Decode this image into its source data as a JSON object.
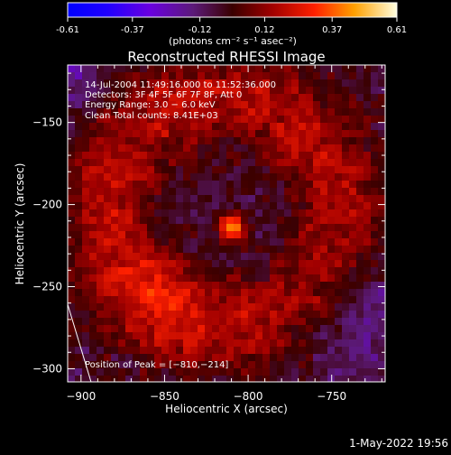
{
  "colorbar": {
    "ticks": [
      "-0.61",
      "-0.37",
      "-0.12",
      "0.12",
      "0.37",
      "0.61"
    ],
    "tick_values": [
      -0.61,
      -0.37,
      -0.12,
      0.12,
      0.37,
      0.61
    ],
    "range": [
      -0.61,
      0.61
    ],
    "units_label": "(photons cm⁻² s⁻¹ asec⁻²)"
  },
  "chart_data": {
    "type": "heatmap",
    "title": "Reconstructed RHESSI Image",
    "xlabel": "Heliocentric X (arcsec)",
    "ylabel": "Heliocentric Y (arcsec)",
    "xlim": [
      -908,
      -718
    ],
    "ylim": [
      -308,
      -115
    ],
    "xticks": [
      -900,
      -850,
      -800,
      -750
    ],
    "yticks": [
      -150,
      -200,
      -250,
      -300
    ],
    "xtick_labels": [
      "−900",
      "−850",
      "−800",
      "−750"
    ],
    "ytick_labels": [
      "−150",
      "−200",
      "−250",
      "−300"
    ],
    "info_lines": [
      "14-Jul-2004 11:49:16.000 to 11:52:36.000",
      "Detectors: 3F 4F 5F 6F 7F 8F, Att 0",
      "Energy Range: 3.0 − 6.0 keV",
      "Clean     Total counts: 8.41E+03"
    ],
    "peak_label": "Position of Peak = [−810,−214]",
    "peak": {
      "x": -810,
      "y": -214,
      "value": 0.61
    },
    "limb_line": [
      [
        -910,
        -254
      ],
      [
        -894,
        -308
      ]
    ]
  },
  "footer": {
    "date_stamp": "1-May-2022 19:56"
  }
}
